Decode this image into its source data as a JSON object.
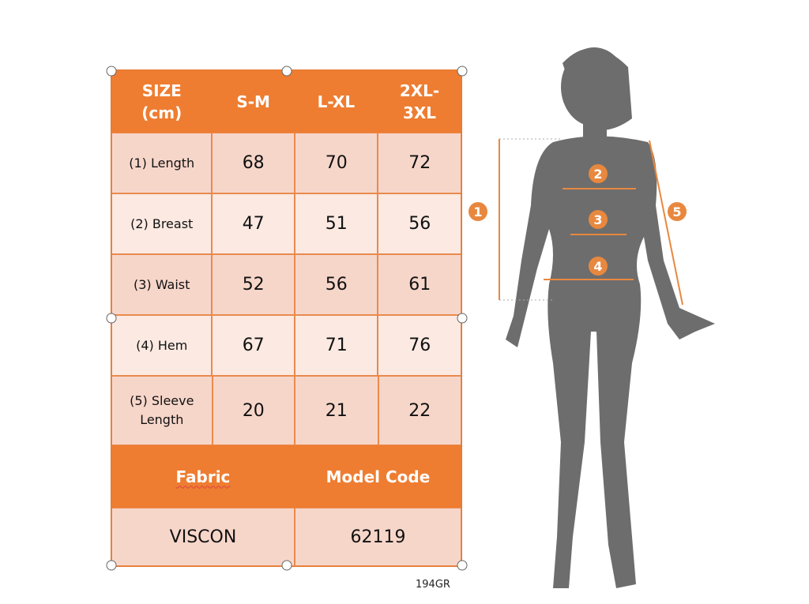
{
  "table": {
    "headers": [
      "SIZE (cm)",
      "S-M",
      "L-XL",
      "2XL- 3XL"
    ],
    "rows": [
      {
        "label": "(1) Length",
        "values": [
          "68",
          "70",
          "72"
        ]
      },
      {
        "label": "(2) Breast",
        "values": [
          "47",
          "51",
          "56"
        ]
      },
      {
        "label": "(3) Waist",
        "values": [
          "52",
          "56",
          "61"
        ]
      },
      {
        "label": "(4) Hem",
        "values": [
          "67",
          "71",
          "76"
        ]
      },
      {
        "label": "(5) Sleeve Length",
        "values": [
          "20",
          "21",
          "22"
        ]
      }
    ],
    "footer_headers": [
      "Fabric",
      "Model Code"
    ],
    "footer_values": [
      "VISCON",
      "62119"
    ]
  },
  "code": "194GR",
  "figure": {
    "markers": [
      "1",
      "2",
      "3",
      "4",
      "5"
    ]
  },
  "colors": {
    "accent": "#ee7d31",
    "row_dark": "#f7d6ca",
    "row_light": "#fbe9e2",
    "silhouette": "#6d6d6d"
  }
}
